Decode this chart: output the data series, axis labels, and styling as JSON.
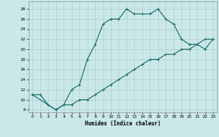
{
  "xlabel": "Humidex (Indice chaleur)",
  "bg_color": "#cbe8e8",
  "grid_color": "#b0d0d0",
  "line_color": "#1a6b6b",
  "xlim": [
    -0.5,
    23.5
  ],
  "ylim": [
    7.5,
    29.5
  ],
  "xticks": [
    0,
    1,
    2,
    3,
    4,
    5,
    6,
    7,
    8,
    9,
    10,
    11,
    12,
    13,
    14,
    15,
    16,
    17,
    18,
    19,
    20,
    21,
    22,
    23
  ],
  "yticks": [
    8,
    10,
    12,
    14,
    16,
    18,
    20,
    22,
    24,
    26,
    28
  ],
  "curve1_x": [
    0,
    1,
    2,
    3,
    4,
    5,
    6,
    7,
    8,
    9,
    10,
    11,
    12,
    13,
    14,
    15,
    16,
    17,
    18
  ],
  "curve1_y": [
    11,
    11,
    9,
    8,
    9,
    12,
    13,
    18,
    21,
    25,
    26,
    26,
    28,
    27,
    27,
    27,
    28,
    26,
    25
  ],
  "curve2_x": [
    0,
    2,
    3,
    4,
    5,
    6,
    7,
    8,
    9,
    10,
    11,
    12,
    13,
    14,
    15,
    16,
    17,
    18,
    19,
    20,
    21,
    22,
    23
  ],
  "curve2_y": [
    11,
    9,
    8,
    9,
    9,
    10,
    10,
    11,
    12,
    13,
    14,
    15,
    16,
    17,
    18,
    18,
    19,
    19,
    20,
    20,
    21,
    22,
    22
  ],
  "curve3_x": [
    18,
    19,
    20,
    21,
    22,
    23
  ],
  "curve3_y": [
    25,
    22,
    21,
    21,
    20,
    22
  ]
}
